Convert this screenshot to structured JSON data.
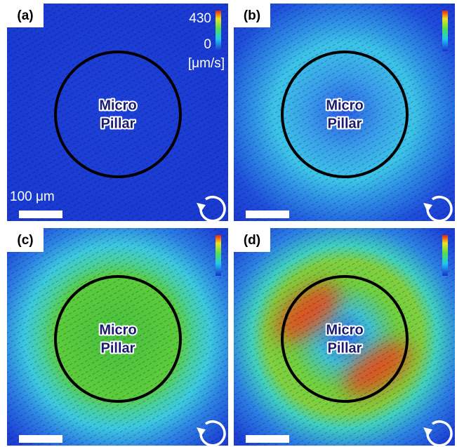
{
  "panels": [
    {
      "label": "(a)",
      "pillar_text": [
        "Micro",
        "Pillar"
      ],
      "colorbar": {
        "max": "430",
        "min": "0",
        "unit": "[μm/s]"
      },
      "scale_bar": "100 μm"
    },
    {
      "label": "(b)",
      "pillar_text": [
        "Micro",
        "Pillar"
      ]
    },
    {
      "label": "(c)",
      "pillar_text": [
        "Micro",
        "Pillar"
      ]
    },
    {
      "label": "(d)",
      "pillar_text": [
        "Micro",
        "Pillar"
      ]
    }
  ]
}
